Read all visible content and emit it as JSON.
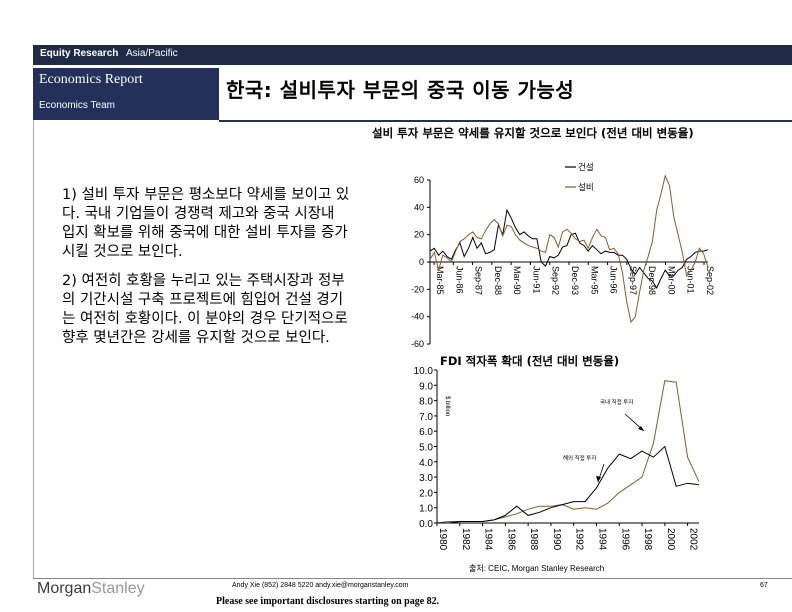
{
  "header": {
    "brand_bold": "Equity Research",
    "brand_region": "Asia/Pacific",
    "report_type": "Economics Report",
    "team": "Economics Team",
    "title": "한국: 설비투자 부문의 중국 이동 가능성"
  },
  "body": {
    "bullet1": "1) 설비 투자 부문은 평소보다 약세를 보이고 있다. 국내 기업들이 경쟁력 제고와 중국 시장내 입지 확보를 위해 중국에 대한 설비 투자를 증가시킬 것으로 보인다.",
    "bullet2": "2) 여전히 호황을 누리고 있는 주택시장과 정부의 기간시설 구축 프로젝트에 힘입어 건설 경기는 여전히 호황이다. 이 분야의 경우 단기적으로 향후 몇년간은 강세를 유지할 것으로 보인다."
  },
  "chart_data": [
    {
      "type": "line",
      "title": "설비 투자 부문은 약세를 유지할 것으로 보인다 (전년 대비 변동율)",
      "xlabel": "",
      "ylabel": "",
      "ylim": [
        -60,
        60
      ],
      "yticks": [
        "60",
        "40",
        "20",
        "0",
        "-20",
        "-40",
        "-60"
      ],
      "xticks": [
        "Mar-85",
        "Jun-86",
        "Sep-87",
        "Dec-88",
        "Mar-90",
        "Jun-91",
        "Sep-92",
        "Dec-93",
        "Mar-95",
        "Jun-96",
        "Sep-97",
        "Dec-98",
        "Mar-00",
        "Jun-01",
        "Sep-02"
      ],
      "legend": [
        "건설",
        "설비"
      ],
      "legend_position": "top-right",
      "series": [
        {
          "name": "건설",
          "color": "#000000",
          "values": [
            8,
            10,
            5,
            8,
            4,
            2,
            9,
            14,
            4,
            10,
            18,
            10,
            14,
            6,
            7,
            9,
            27,
            20,
            38,
            32,
            25,
            20,
            22,
            19,
            17,
            17,
            0,
            -3,
            4,
            3,
            5,
            11,
            12,
            20,
            21,
            14,
            12,
            8,
            12,
            9,
            6,
            8,
            7,
            7,
            5,
            5,
            2,
            -5,
            -9,
            -4,
            -8,
            -12,
            -14,
            -19,
            -12,
            -6,
            -10,
            -10,
            -6,
            -4,
            2,
            4,
            7,
            8,
            8,
            9
          ]
        },
        {
          "name": "설비",
          "color": "#8b5a2b",
          "values": [
            2,
            7,
            -6,
            5,
            3,
            0,
            8,
            15,
            17,
            20,
            22,
            18,
            17,
            23,
            28,
            31,
            28,
            19,
            27,
            26,
            20,
            16,
            14,
            12,
            11,
            10,
            8,
            7,
            20,
            18,
            11,
            22,
            24,
            21,
            17,
            15,
            16,
            10,
            18,
            24,
            19,
            18,
            9,
            10,
            6,
            -8,
            -29,
            -44,
            -40,
            -22,
            -6,
            4,
            15,
            38,
            50,
            63,
            56,
            33,
            20,
            7,
            -10,
            -6,
            0,
            10,
            6,
            -4
          ]
        }
      ]
    },
    {
      "type": "line",
      "title": "FDI 적자폭 확대 (전년 대비 변동율)",
      "ylabel": "$ billion",
      "ylim": [
        0,
        10
      ],
      "yticks": [
        "10.0",
        "9.0",
        "8.0",
        "7.0",
        "6.0",
        "5.0",
        "4.0",
        "3.0",
        "2.0",
        "1.0",
        "0.0"
      ],
      "x": [
        1980,
        1981,
        1982,
        1983,
        1984,
        1985,
        1986,
        1987,
        1988,
        1989,
        1990,
        1991,
        1992,
        1993,
        1994,
        1995,
        1996,
        1997,
        1998,
        1999,
        2000,
        2001,
        2002,
        2003
      ],
      "xticks": [
        "1980",
        "1982",
        "1984",
        "1986",
        "1988",
        "1990",
        "1992",
        "1994",
        "1996",
        "1998",
        "2000",
        "2002"
      ],
      "annotations": [
        "국내 직접 투자",
        "해외 직접 투자"
      ],
      "series": [
        {
          "name": "국내 직접 투자",
          "color": "#8b5a2b",
          "values": [
            0.0,
            0.1,
            0.1,
            0.1,
            0.1,
            0.2,
            0.4,
            0.6,
            0.9,
            1.1,
            1.1,
            1.2,
            0.9,
            1.0,
            0.9,
            1.3,
            2.0,
            2.5,
            3.0,
            5.2,
            9.3,
            9.2,
            4.3,
            2.7
          ]
        },
        {
          "name": "해외 직접 투자",
          "color": "#000000",
          "values": [
            0.0,
            0.0,
            0.1,
            0.1,
            0.1,
            0.2,
            0.5,
            1.1,
            0.5,
            0.7,
            1.0,
            1.2,
            1.4,
            1.4,
            2.3,
            3.6,
            4.5,
            4.2,
            4.7,
            4.3,
            5.0,
            2.4,
            2.6,
            2.5
          ]
        }
      ]
    }
  ],
  "source": "출처: CEIC, Morgan Stanley Research",
  "footer": {
    "logo_a": "Morgan",
    "logo_b": "Stanley",
    "contact": "Andy Xie (852) 2848 5220  andy.xie@morganstanley.com",
    "disclosure": "Please see important disclosures starting on page 82.",
    "page": "67"
  }
}
